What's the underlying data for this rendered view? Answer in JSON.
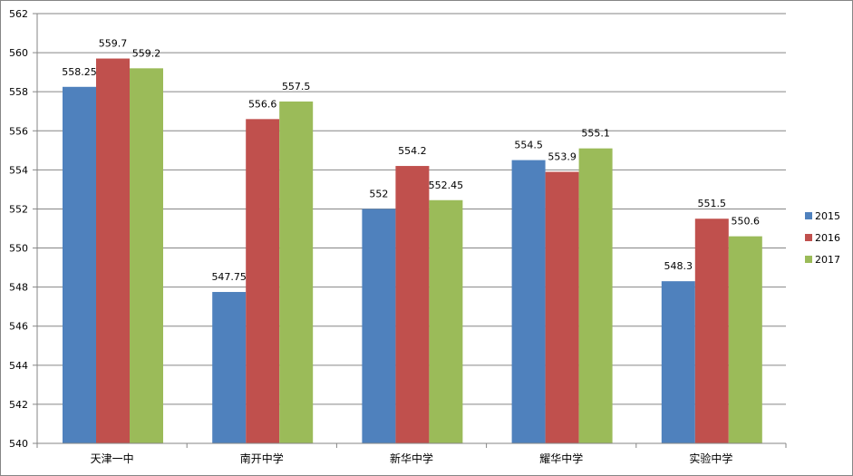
{
  "chart_data": {
    "type": "bar",
    "categories": [
      "天津一中",
      "南开中学",
      "新华中学",
      "耀华中学",
      "实验中学"
    ],
    "series": [
      {
        "name": "2015",
        "color": "#4F81BD",
        "values": [
          558.25,
          547.75,
          552,
          554.5,
          548.3
        ]
      },
      {
        "name": "2016",
        "color": "#C0504D",
        "values": [
          559.7,
          556.6,
          554.2,
          553.9,
          551.5
        ]
      },
      {
        "name": "2017",
        "color": "#9BBB59",
        "values": [
          559.2,
          557.5,
          552.45,
          555.1,
          550.6
        ]
      }
    ],
    "data_labels": [
      [
        "558.25",
        "547.75",
        "552",
        "554.5",
        "548.3"
      ],
      [
        "559.7",
        "556.6",
        "554.2",
        "553.9",
        "551.5"
      ],
      [
        "559.2",
        "557.5",
        "552.45",
        "555.1",
        "550.6"
      ]
    ],
    "y_ticks": [
      "540",
      "542",
      "544",
      "546",
      "548",
      "550",
      "552",
      "554",
      "556",
      "558",
      "560",
      "562"
    ],
    "ylim": [
      540,
      562
    ],
    "grid": true,
    "legend": "right"
  }
}
